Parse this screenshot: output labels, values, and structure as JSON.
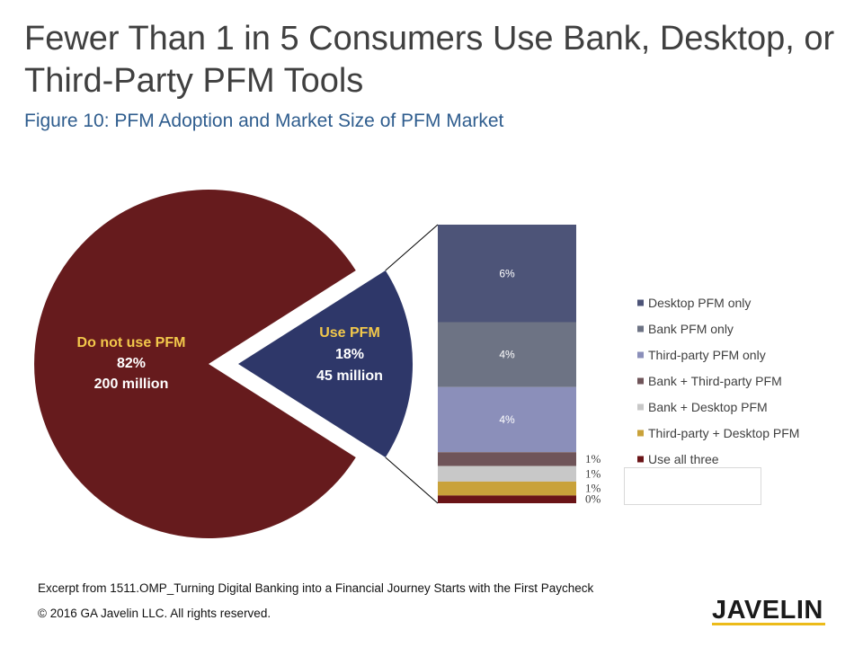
{
  "title": {
    "line1": "Fewer Than 1 in 5 Consumers Use Bank, Desktop, or",
    "line2": "Third-Party PFM Tools"
  },
  "subtitle": "Figure 10: PFM Adoption and Market Size of PFM Market",
  "chart_data": [
    {
      "type": "pie",
      "slices": [
        {
          "name": "Do not use PFM",
          "value": 82,
          "value_label": "82%",
          "count_label": "200 million",
          "color": "#661b1d"
        },
        {
          "name": "Use PFM",
          "value": 18,
          "value_label": "18%",
          "count_label": "45 million",
          "color": "#2e3769",
          "exploded": true
        }
      ],
      "name_label_color": "#f2c84b",
      "value_label_color": "#ffffff"
    },
    {
      "type": "bar",
      "stacked": true,
      "series": [
        {
          "name": "Desktop PFM only",
          "value": 6.3,
          "label": "6%",
          "color": "#4d5478"
        },
        {
          "name": "Bank PFM only",
          "value": 4.2,
          "label": "4%",
          "color": "#6d7384"
        },
        {
          "name": "Third-party PFM only",
          "value": 4.2,
          "label": "4%",
          "color": "#8b8fba"
        },
        {
          "name": "Bank + Third-party PFM",
          "value": 0.9,
          "label": "1%",
          "color": "#6f5459"
        },
        {
          "name": "Bank + Desktop PFM",
          "value": 1.0,
          "label": "1%",
          "color": "#c8c8c8"
        },
        {
          "name": "Third-party + Desktop PFM",
          "value": 0.9,
          "label": "1%",
          "color": "#c9a23a"
        },
        {
          "name": "Use all three",
          "value": 0.5,
          "label": "0%",
          "color": "#6a1417"
        }
      ],
      "legend": "right",
      "grid": false
    }
  ],
  "footer": {
    "excerpt": "Excerpt from 1511.OMP_Turning Digital Banking into a Financial Journey Starts with the First Paycheck",
    "copyright": "© 2016 GA Javelin LLC. All rights reserved."
  },
  "logo": {
    "text": "JAVELIN",
    "underline_color": "#ecbb1a"
  }
}
